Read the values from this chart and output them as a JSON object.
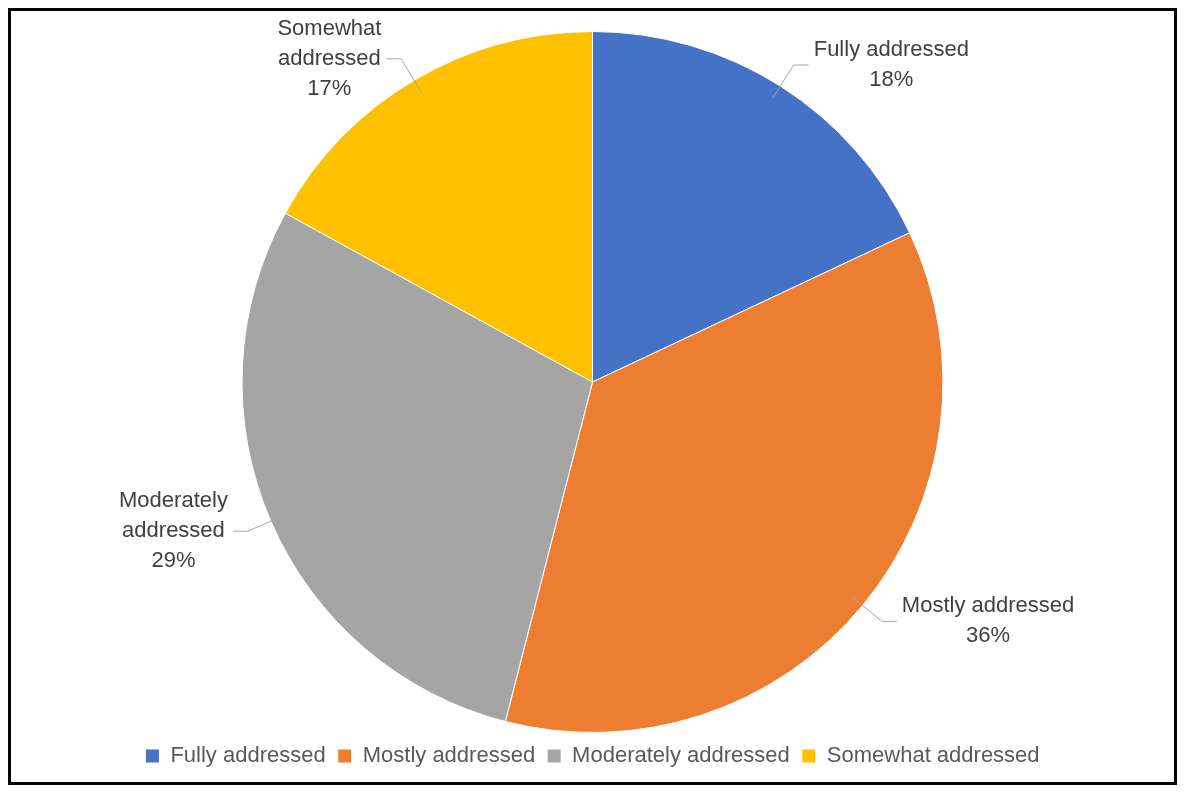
{
  "chart_data": {
    "type": "pie",
    "categories": [
      "Fully addressed",
      "Mostly addressed",
      "Moderately addressed",
      "Somewhat addressed"
    ],
    "values": [
      18,
      36,
      29,
      17
    ],
    "colors": [
      "#4472c4",
      "#ed7d31",
      "#a5a5a5",
      "#ffc000"
    ],
    "value_labels": [
      "18%",
      "36%",
      "29%",
      "17%"
    ],
    "legend": "bottom"
  }
}
